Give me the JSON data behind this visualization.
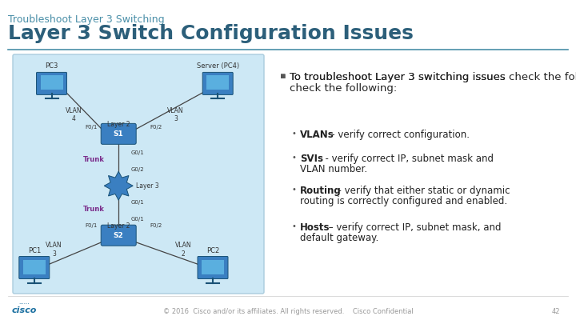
{
  "bg_color": "#ffffff",
  "title_small": "Troubleshoot Layer 3 Switching",
  "title_large": "Layer 3 Switch Configuration Issues",
  "title_small_color": "#4a8fa8",
  "title_large_color": "#2c5f7a",
  "title_large_fontsize": 18,
  "title_small_fontsize": 9,
  "header_line_color": "#4a8fa8",
  "diagram_bg": "#cde8f5",
  "diagram_border": "#aaccdd",
  "main_bullet_text": "To troubleshoot Layer 3 switching issues check the following:",
  "main_bullet_color": "#222222",
  "main_bullet_fontsize": 9.5,
  "sub_bullets": [
    {
      "bold": "VLANs",
      "rest": " – verify correct configuration."
    },
    {
      "bold": "SVIs",
      "rest": "  - verify correct IP, subnet mask and\nVLAN number."
    },
    {
      "bold": "Routing",
      "rest": "  - verify that either static or dynamic\nrouting is correctly configured and enabled."
    },
    {
      "bold": "Hosts",
      "rest": " – verify correct IP, subnet mask, and\ndefault gateway."
    }
  ],
  "sub_bullet_fontsize": 8.5,
  "sub_bullet_color": "#222222",
  "footer_text": "© 2016  Cisco and/or its affiliates. All rights reserved.    Cisco Confidential",
  "footer_color": "#999999",
  "footer_fontsize": 6,
  "page_num": "42",
  "cisco_color": "#1a6fa0",
  "trunk_color": "#7b2d8b",
  "device_color": "#3a7fc1",
  "device_dark": "#1a5276",
  "line_color": "#444444",
  "text_label_color": "#333333",
  "vlan_label_color": "#333333"
}
